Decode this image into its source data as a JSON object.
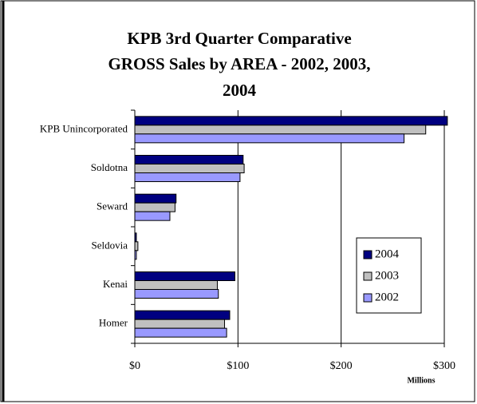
{
  "chart_data": {
    "type": "hbar",
    "title": [
      "KPB 3rd Quarter Comparative",
      "GROSS Sales by AREA - 2002, 2003,",
      "2004"
    ],
    "categories": [
      "KPB Unincorporated",
      "Soldotna",
      "Seward",
      "Seldovia",
      "Kenai",
      "Homer"
    ],
    "series": [
      {
        "name": "2004",
        "color": "#000080",
        "values": [
          303,
          105,
          40,
          1.5,
          97,
          92
        ]
      },
      {
        "name": "2003",
        "color": "#c0c0c0",
        "values": [
          282,
          106,
          39,
          3,
          80,
          87
        ]
      },
      {
        "name": "2002",
        "color": "#9999ff",
        "values": [
          261,
          102,
          34,
          1.5,
          81,
          89
        ]
      }
    ],
    "xlim": [
      0,
      300
    ],
    "xticks": [
      {
        "value": 0,
        "label": "$0"
      },
      {
        "value": 100,
        "label": "$100"
      },
      {
        "value": 200,
        "label": "$200"
      },
      {
        "value": 300,
        "label": "$300"
      }
    ],
    "xlabel": "Millions",
    "grid": true,
    "legend": "right"
  }
}
